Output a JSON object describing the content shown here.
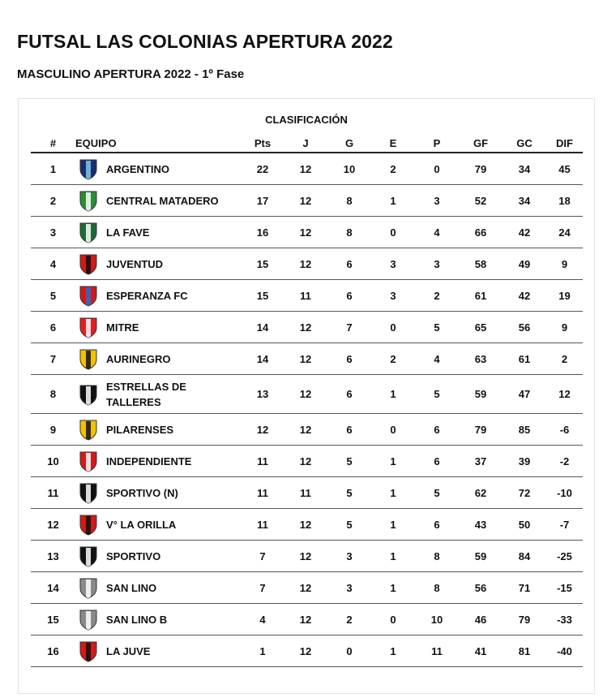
{
  "title": "FUTSAL LAS COLONIAS APERTURA 2022",
  "subtitle": "MASCULINO APERTURA 2022 - 1º Fase",
  "table": {
    "caption": "CLASIFICACIÓN",
    "headers": {
      "pos": "#",
      "team": "EQUIPO",
      "pts": "Pts",
      "j": "J",
      "g": "G",
      "e": "E",
      "p": "P",
      "gf": "GF",
      "gc": "GC",
      "dif": "DIF"
    },
    "rows": [
      {
        "pos": "1",
        "team": "ARGENTINO",
        "pts": "22",
        "j": "12",
        "g": "10",
        "e": "2",
        "p": "0",
        "gf": "79",
        "gc": "34",
        "dif": "45",
        "logo": "argentino-crest-icon",
        "colors": [
          "#1a2e6e",
          "#7ec8e3"
        ]
      },
      {
        "pos": "2",
        "team": "CENTRAL MATADERO",
        "pts": "17",
        "j": "12",
        "g": "8",
        "e": "1",
        "p": "3",
        "gf": "52",
        "gc": "34",
        "dif": "18",
        "logo": "central-matadero-crest-icon",
        "colors": [
          "#2e8b3a",
          "#ffffff"
        ]
      },
      {
        "pos": "3",
        "team": "LA FAVE",
        "pts": "16",
        "j": "12",
        "g": "8",
        "e": "0",
        "p": "4",
        "gf": "66",
        "gc": "42",
        "dif": "24",
        "logo": "la-fave-crest-icon",
        "colors": [
          "#1f6b3a",
          "#ffffff"
        ]
      },
      {
        "pos": "4",
        "team": "JUVENTUD",
        "pts": "15",
        "j": "12",
        "g": "6",
        "e": "3",
        "p": "3",
        "gf": "58",
        "gc": "49",
        "dif": "9",
        "logo": "juventud-crest-icon",
        "colors": [
          "#d11a1a",
          "#111111"
        ]
      },
      {
        "pos": "5",
        "team": "ESPERANZA FC",
        "pts": "15",
        "j": "11",
        "g": "6",
        "e": "3",
        "p": "2",
        "gf": "61",
        "gc": "42",
        "dif": "19",
        "logo": "esperanza-fc-crest-icon",
        "colors": [
          "#d11a1a",
          "#2a6cc9"
        ]
      },
      {
        "pos": "6",
        "team": "MITRE",
        "pts": "14",
        "j": "12",
        "g": "7",
        "e": "0",
        "p": "5",
        "gf": "65",
        "gc": "56",
        "dif": "9",
        "logo": "mitre-crest-icon",
        "colors": [
          "#e02020",
          "#ffffff"
        ]
      },
      {
        "pos": "7",
        "team": "AURINEGRO",
        "pts": "14",
        "j": "12",
        "g": "6",
        "e": "2",
        "p": "4",
        "gf": "63",
        "gc": "61",
        "dif": "2",
        "logo": "aurinegro-crest-icon",
        "colors": [
          "#f2c200",
          "#111111"
        ]
      },
      {
        "pos": "8",
        "team": "ESTRELLAS DE TALLERES",
        "pts": "13",
        "j": "12",
        "g": "6",
        "e": "1",
        "p": "5",
        "gf": "59",
        "gc": "47",
        "dif": "12",
        "logo": "estrellas-de-talleres-crest-icon",
        "colors": [
          "#111111",
          "#ffffff"
        ]
      },
      {
        "pos": "9",
        "team": "PILARENSES",
        "pts": "12",
        "j": "12",
        "g": "6",
        "e": "0",
        "p": "6",
        "gf": "79",
        "gc": "85",
        "dif": "-6",
        "logo": "pilarenses-crest-icon",
        "colors": [
          "#f2c200",
          "#111111"
        ]
      },
      {
        "pos": "10",
        "team": "INDEPENDIENTE",
        "pts": "11",
        "j": "12",
        "g": "5",
        "e": "1",
        "p": "6",
        "gf": "37",
        "gc": "39",
        "dif": "-2",
        "logo": "independiente-crest-icon",
        "colors": [
          "#d11a1a",
          "#ffffff"
        ]
      },
      {
        "pos": "11",
        "team": "SPORTIVO (N)",
        "pts": "11",
        "j": "11",
        "g": "5",
        "e": "1",
        "p": "5",
        "gf": "62",
        "gc": "72",
        "dif": "-10",
        "logo": "sportivo-n-crest-icon",
        "colors": [
          "#111111",
          "#ffffff"
        ]
      },
      {
        "pos": "12",
        "team": "V° LA ORILLA",
        "pts": "11",
        "j": "12",
        "g": "5",
        "e": "1",
        "p": "6",
        "gf": "43",
        "gc": "50",
        "dif": "-7",
        "logo": "la-orilla-crest-icon",
        "colors": [
          "#d11a1a",
          "#111111"
        ]
      },
      {
        "pos": "13",
        "team": "SPORTIVO",
        "pts": "7",
        "j": "12",
        "g": "3",
        "e": "1",
        "p": "8",
        "gf": "59",
        "gc": "84",
        "dif": "-25",
        "logo": "sportivo-crest-icon",
        "colors": [
          "#111111",
          "#ffffff"
        ]
      },
      {
        "pos": "14",
        "team": "SAN LINO",
        "pts": "7",
        "j": "12",
        "g": "3",
        "e": "1",
        "p": "8",
        "gf": "56",
        "gc": "71",
        "dif": "-15",
        "logo": "san-lino-crest-icon",
        "colors": [
          "#8a8a8a",
          "#ffffff"
        ]
      },
      {
        "pos": "15",
        "team": "SAN LINO B",
        "pts": "4",
        "j": "12",
        "g": "2",
        "e": "0",
        "p": "10",
        "gf": "46",
        "gc": "79",
        "dif": "-33",
        "logo": "san-lino-b-crest-icon",
        "colors": [
          "#8a8a8a",
          "#ffffff"
        ]
      },
      {
        "pos": "16",
        "team": "LA JUVE",
        "pts": "1",
        "j": "12",
        "g": "0",
        "e": "1",
        "p": "11",
        "gf": "41",
        "gc": "81",
        "dif": "-40",
        "logo": "la-juve-crest-icon",
        "colors": [
          "#d11a1a",
          "#111111"
        ]
      }
    ]
  }
}
